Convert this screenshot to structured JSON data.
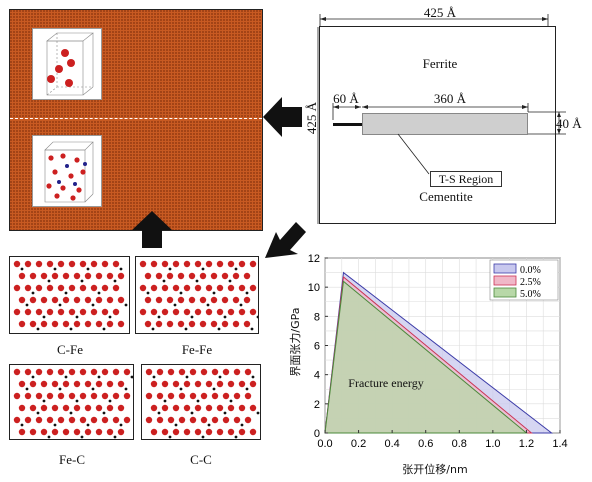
{
  "md_model": {
    "labels": {
      "c_fe": "C-Fe",
      "fe_fe": "Fe-Fe",
      "fe_c": "Fe-C",
      "c_c": "C-C"
    }
  },
  "schematic": {
    "dim_width": "425 Å",
    "dim_height": "425 Å",
    "dim_crack": "60 Å",
    "dim_region_length": "360 Å",
    "dim_region_height": "40 Å",
    "ferrite_label": "Ferrite",
    "cementite_label": "Cementite",
    "region_label": "T-S Region"
  },
  "colors": {
    "atom_fe": "#cc2020",
    "atom_c": "#111111",
    "md_block": "#c85a22"
  },
  "chart_data": {
    "type": "area",
    "xlabel": "张开位移/nm",
    "ylabel": "界面张力/GPa",
    "annotation": "Fracture energy",
    "xlim": [
      0.0,
      1.4
    ],
    "ylim": [
      0,
      12
    ],
    "xticks": [
      "0.0",
      "0.2",
      "0.4",
      "0.6",
      "0.8",
      "1.0",
      "1.2",
      "1.4"
    ],
    "yticks": [
      "0",
      "2",
      "4",
      "6",
      "8",
      "10",
      "12"
    ],
    "legend_position": "top-right",
    "series": [
      {
        "name": "0.0%",
        "x": [
          0,
          0.11,
          1.35
        ],
        "y": [
          0,
          11.0,
          0
        ],
        "color": "#3c3ca8",
        "fill": "#c8c8ee"
      },
      {
        "name": "2.5%",
        "x": [
          0,
          0.11,
          1.23
        ],
        "y": [
          0,
          10.7,
          0
        ],
        "color": "#cc3355",
        "fill": "#f0b8c8"
      },
      {
        "name": "5.0%",
        "x": [
          0,
          0.11,
          1.2
        ],
        "y": [
          0,
          10.4,
          0
        ],
        "color": "#4a8a3a",
        "fill": "#b8d8a8"
      }
    ]
  }
}
